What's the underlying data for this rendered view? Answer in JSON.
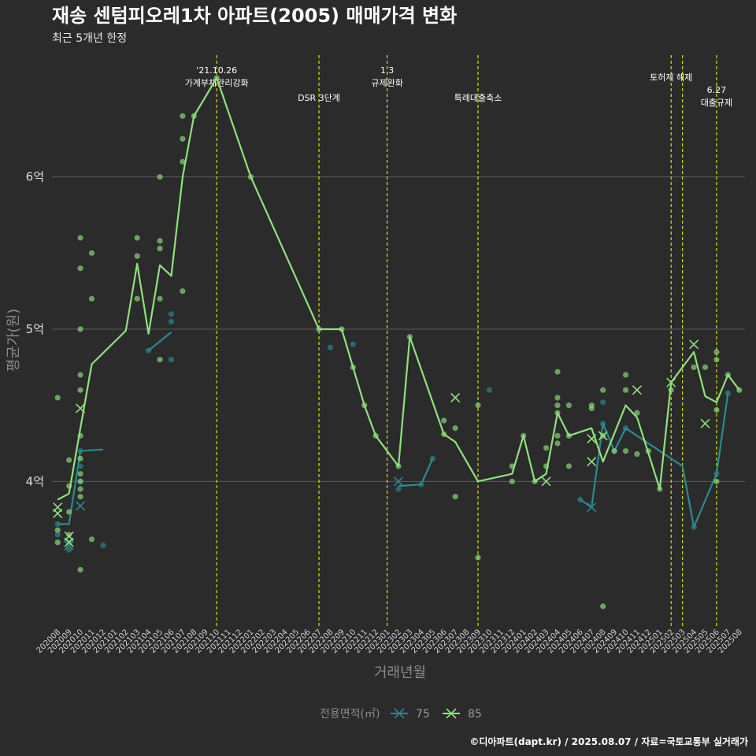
{
  "chart_data": {
    "type": "line",
    "title": "재송 센텀피오레1차 아파트(2005) 매매가격 변화",
    "subtitle": "최근 5개년 한정",
    "xlabel": "거래년월",
    "ylabel": "평균가(원)",
    "y_unit": "억",
    "ylim": [
      3.05,
      6.8
    ],
    "yticks": [
      {
        "value": 4,
        "label": "4억"
      },
      {
        "value": 5,
        "label": "5억"
      },
      {
        "value": 6,
        "label": "6억"
      }
    ],
    "grid": true,
    "legend_position": "bottom",
    "legend_title": "전용면적(㎡)",
    "caption": "©디아파트(dapt.kr) / 2025.08.07 / 자료=국토교통부 실거래가",
    "categories": [
      "202008",
      "202009",
      "202010",
      "202011",
      "202012",
      "202101",
      "202102",
      "202103",
      "202104",
      "202105",
      "202106",
      "202107",
      "202108",
      "202109",
      "202110",
      "202111",
      "202112",
      "202201",
      "202202",
      "202203",
      "202204",
      "202205",
      "202206",
      "202207",
      "202208",
      "202209",
      "202210",
      "202211",
      "202212",
      "202301",
      "202302",
      "202303",
      "202304",
      "202305",
      "202306",
      "202307",
      "202308",
      "202309",
      "202310",
      "202311",
      "202312",
      "202401",
      "202402",
      "202403",
      "202404",
      "202405",
      "202406",
      "202407",
      "202408",
      "202409",
      "202410",
      "202411",
      "202412",
      "202501",
      "202502",
      "202503",
      "202504",
      "202505",
      "202506",
      "202507",
      "202508"
    ],
    "annotations": [
      {
        "x": "202110",
        "lines": [
          "'21.10.26",
          "가계부채관리강화"
        ],
        "level": "high"
      },
      {
        "x": "202207",
        "lines": [
          "DSR 3단계"
        ],
        "level": "low"
      },
      {
        "x": "202301",
        "lines": [
          "1.3",
          "규제완화"
        ],
        "level": "high"
      },
      {
        "x": "202309",
        "lines": [
          "특례대출축소"
        ],
        "level": "low"
      },
      {
        "x": "202502",
        "lines": [
          "토허제 해제"
        ],
        "level": "mid"
      },
      {
        "x": "202503",
        "lines": [],
        "level": "none"
      },
      {
        "x": "202506",
        "lines": [
          "6.27",
          "대출규제"
        ],
        "level": "low2"
      }
    ],
    "series": [
      {
        "name": "75",
        "color": "#2a8a8f",
        "line": [
          {
            "x": "202008",
            "y": 3.72
          },
          {
            "x": "202009",
            "y": 3.72
          },
          {
            "x": "202010",
            "y": 4.2
          },
          {
            "x": "202012",
            "y": 4.21
          }
        ],
        "line2": [
          {
            "x": "202104",
            "y": 4.86
          },
          {
            "x": "202106",
            "y": 4.98
          }
        ],
        "line3": [
          {
            "x": "202302",
            "y": 3.97
          },
          {
            "x": "202304",
            "y": 3.98
          },
          {
            "x": "202305",
            "y": 4.15
          }
        ],
        "line4": [
          {
            "x": "202406",
            "y": 3.88
          },
          {
            "x": "202407",
            "y": 3.83
          },
          {
            "x": "202408",
            "y": 4.38
          },
          {
            "x": "202409",
            "y": 4.2
          },
          {
            "x": "202410",
            "y": 4.35
          },
          {
            "x": "202503",
            "y": 4.1
          },
          {
            "x": "202504",
            "y": 3.7
          },
          {
            "x": "202506",
            "y": 4.05
          },
          {
            "x": "202507",
            "y": 4.58
          }
        ],
        "points": [
          {
            "x": "202008",
            "y": 3.72
          },
          {
            "x": "202008",
            "y": 3.65
          },
          {
            "x": "202009",
            "y": 3.55
          },
          {
            "x": "202009",
            "y": 3.6
          },
          {
            "x": "202010",
            "y": 4.2
          },
          {
            "x": "202010",
            "y": 4.0
          },
          {
            "x": "202010",
            "y": 4.1
          },
          {
            "x": "202012",
            "y": 3.58
          },
          {
            "x": "202104",
            "y": 4.86
          },
          {
            "x": "202106",
            "y": 5.1
          },
          {
            "x": "202106",
            "y": 5.05
          },
          {
            "x": "202106",
            "y": 4.8
          },
          {
            "x": "202208",
            "y": 4.88
          },
          {
            "x": "202210",
            "y": 4.9
          },
          {
            "x": "202302",
            "y": 3.95
          },
          {
            "x": "202304",
            "y": 3.98
          },
          {
            "x": "202305",
            "y": 4.15
          },
          {
            "x": "202310",
            "y": 4.6
          },
          {
            "x": "202406",
            "y": 3.88
          },
          {
            "x": "202408",
            "y": 4.52
          },
          {
            "x": "202408",
            "y": 4.38
          },
          {
            "x": "202409",
            "y": 4.2
          },
          {
            "x": "202410",
            "y": 4.35
          },
          {
            "x": "202504",
            "y": 3.7
          },
          {
            "x": "202506",
            "y": 4.05
          },
          {
            "x": "202507",
            "y": 4.58
          }
        ],
        "crosses": [
          {
            "x": "202009",
            "y": 3.58
          },
          {
            "x": "202010",
            "y": 3.84
          },
          {
            "x": "202302",
            "y": 4.0
          },
          {
            "x": "202407",
            "y": 3.83
          }
        ]
      },
      {
        "name": "85",
        "color": "#90e07f",
        "line": [
          {
            "x": "202008",
            "y": 3.88
          },
          {
            "x": "202009",
            "y": 3.92
          },
          {
            "x": "202010",
            "y": 4.35
          },
          {
            "x": "202011",
            "y": 4.77
          },
          {
            "x": "202102",
            "y": 4.99
          },
          {
            "x": "202103",
            "y": 5.43
          },
          {
            "x": "202104",
            "y": 4.97
          },
          {
            "x": "202105",
            "y": 5.42
          },
          {
            "x": "202106",
            "y": 5.35
          },
          {
            "x": "202107",
            "y": 6.0
          },
          {
            "x": "202108",
            "y": 6.4
          },
          {
            "x": "202110",
            "y": 6.65
          },
          {
            "x": "202201",
            "y": 6.0
          },
          {
            "x": "202207",
            "y": 5.0
          },
          {
            "x": "202209",
            "y": 5.0
          },
          {
            "x": "202210",
            "y": 4.75
          },
          {
            "x": "202211",
            "y": 4.5
          },
          {
            "x": "202212",
            "y": 4.3
          },
          {
            "x": "202302",
            "y": 4.1
          },
          {
            "x": "202303",
            "y": 4.95
          },
          {
            "x": "202306",
            "y": 4.31
          },
          {
            "x": "202307",
            "y": 4.26
          },
          {
            "x": "202309",
            "y": 4.0
          },
          {
            "x": "202312",
            "y": 4.05
          },
          {
            "x": "202401",
            "y": 4.3
          },
          {
            "x": "202402",
            "y": 4.0
          },
          {
            "x": "202403",
            "y": 4.05
          },
          {
            "x": "202404",
            "y": 4.45
          },
          {
            "x": "202405",
            "y": 4.3
          },
          {
            "x": "202407",
            "y": 4.35
          },
          {
            "x": "202408",
            "y": 4.13
          },
          {
            "x": "202410",
            "y": 4.5
          },
          {
            "x": "202411",
            "y": 4.42
          },
          {
            "x": "202501",
            "y": 3.95
          },
          {
            "x": "202502",
            "y": 4.65
          },
          {
            "x": "202504",
            "y": 4.85
          },
          {
            "x": "202505",
            "y": 4.56
          },
          {
            "x": "202506",
            "y": 4.52
          },
          {
            "x": "202507",
            "y": 4.7
          },
          {
            "x": "202508",
            "y": 4.6
          }
        ],
        "points": [
          {
            "x": "202008",
            "y": 4.55
          },
          {
            "x": "202008",
            "y": 3.68
          },
          {
            "x": "202008",
            "y": 3.6
          },
          {
            "x": "202009",
            "y": 4.14
          },
          {
            "x": "202009",
            "y": 3.97
          },
          {
            "x": "202009",
            "y": 3.8
          },
          {
            "x": "202009",
            "y": 3.65
          },
          {
            "x": "202010",
            "y": 5.6
          },
          {
            "x": "202010",
            "y": 5.4
          },
          {
            "x": "202010",
            "y": 5.0
          },
          {
            "x": "202010",
            "y": 4.7
          },
          {
            "x": "202010",
            "y": 4.6
          },
          {
            "x": "202010",
            "y": 4.3
          },
          {
            "x": "202010",
            "y": 4.15
          },
          {
            "x": "202010",
            "y": 4.05
          },
          {
            "x": "202010",
            "y": 4.0
          },
          {
            "x": "202010",
            "y": 3.95
          },
          {
            "x": "202010",
            "y": 3.9
          },
          {
            "x": "202010",
            "y": 3.42
          },
          {
            "x": "202011",
            "y": 5.5
          },
          {
            "x": "202011",
            "y": 5.2
          },
          {
            "x": "202011",
            "y": 3.62
          },
          {
            "x": "202103",
            "y": 5.6
          },
          {
            "x": "202103",
            "y": 5.48
          },
          {
            "x": "202103",
            "y": 5.2
          },
          {
            "x": "202105",
            "y": 6.0
          },
          {
            "x": "202105",
            "y": 5.58
          },
          {
            "x": "202105",
            "y": 5.53
          },
          {
            "x": "202105",
            "y": 5.2
          },
          {
            "x": "202105",
            "y": 4.8
          },
          {
            "x": "202107",
            "y": 6.4
          },
          {
            "x": "202107",
            "y": 6.25
          },
          {
            "x": "202107",
            "y": 6.1
          },
          {
            "x": "202107",
            "y": 5.25
          },
          {
            "x": "202108",
            "y": 6.4
          },
          {
            "x": "202110",
            "y": 6.65
          },
          {
            "x": "202201",
            "y": 6.0
          },
          {
            "x": "202207",
            "y": 5.0
          },
          {
            "x": "202209",
            "y": 5.0
          },
          {
            "x": "202210",
            "y": 4.75
          },
          {
            "x": "202211",
            "y": 4.5
          },
          {
            "x": "202212",
            "y": 4.3
          },
          {
            "x": "202302",
            "y": 4.1
          },
          {
            "x": "202303",
            "y": 4.95
          },
          {
            "x": "202306",
            "y": 4.4
          },
          {
            "x": "202306",
            "y": 4.31
          },
          {
            "x": "202307",
            "y": 4.35
          },
          {
            "x": "202307",
            "y": 3.9
          },
          {
            "x": "202309",
            "y": 4.5
          },
          {
            "x": "202309",
            "y": 3.5
          },
          {
            "x": "202312",
            "y": 4.1
          },
          {
            "x": "202312",
            "y": 4.0
          },
          {
            "x": "202401",
            "y": 4.3
          },
          {
            "x": "202402",
            "y": 4.0
          },
          {
            "x": "202403",
            "y": 4.22
          },
          {
            "x": "202403",
            "y": 4.1
          },
          {
            "x": "202404",
            "y": 4.72
          },
          {
            "x": "202404",
            "y": 4.55
          },
          {
            "x": "202404",
            "y": 4.5
          },
          {
            "x": "202404",
            "y": 4.45
          },
          {
            "x": "202404",
            "y": 4.3
          },
          {
            "x": "202404",
            "y": 4.25
          },
          {
            "x": "202405",
            "y": 4.5
          },
          {
            "x": "202405",
            "y": 4.3
          },
          {
            "x": "202405",
            "y": 4.1
          },
          {
            "x": "202407",
            "y": 4.5
          },
          {
            "x": "202407",
            "y": 4.48
          },
          {
            "x": "202408",
            "y": 4.6
          },
          {
            "x": "202408",
            "y": 4.3
          },
          {
            "x": "202408",
            "y": 3.18
          },
          {
            "x": "202409",
            "y": 4.2
          },
          {
            "x": "202410",
            "y": 4.7
          },
          {
            "x": "202410",
            "y": 4.6
          },
          {
            "x": "202410",
            "y": 4.2
          },
          {
            "x": "202411",
            "y": 4.45
          },
          {
            "x": "202411",
            "y": 4.18
          },
          {
            "x": "202412",
            "y": 4.2
          },
          {
            "x": "202501",
            "y": 3.95
          },
          {
            "x": "202502",
            "y": 4.6
          },
          {
            "x": "202504",
            "y": 4.75
          },
          {
            "x": "202505",
            "y": 4.75
          },
          {
            "x": "202506",
            "y": 4.85
          },
          {
            "x": "202506",
            "y": 4.8
          },
          {
            "x": "202506",
            "y": 4.47
          },
          {
            "x": "202506",
            "y": 4.0
          },
          {
            "x": "202507",
            "y": 4.7
          },
          {
            "x": "202508",
            "y": 4.6
          }
        ],
        "crosses": [
          {
            "x": "202008",
            "y": 3.83
          },
          {
            "x": "202008",
            "y": 3.79
          },
          {
            "x": "202009",
            "y": 3.64
          },
          {
            "x": "202009",
            "y": 3.6
          },
          {
            "x": "202010",
            "y": 4.48
          },
          {
            "x": "202307",
            "y": 4.55
          },
          {
            "x": "202403",
            "y": 4.0
          },
          {
            "x": "202407",
            "y": 4.28
          },
          {
            "x": "202407",
            "y": 4.13
          },
          {
            "x": "202408",
            "y": 4.3
          },
          {
            "x": "202411",
            "y": 4.6
          },
          {
            "x": "202502",
            "y": 4.65
          },
          {
            "x": "202504",
            "y": 4.9
          },
          {
            "x": "202505",
            "y": 4.38
          }
        ]
      }
    ]
  }
}
